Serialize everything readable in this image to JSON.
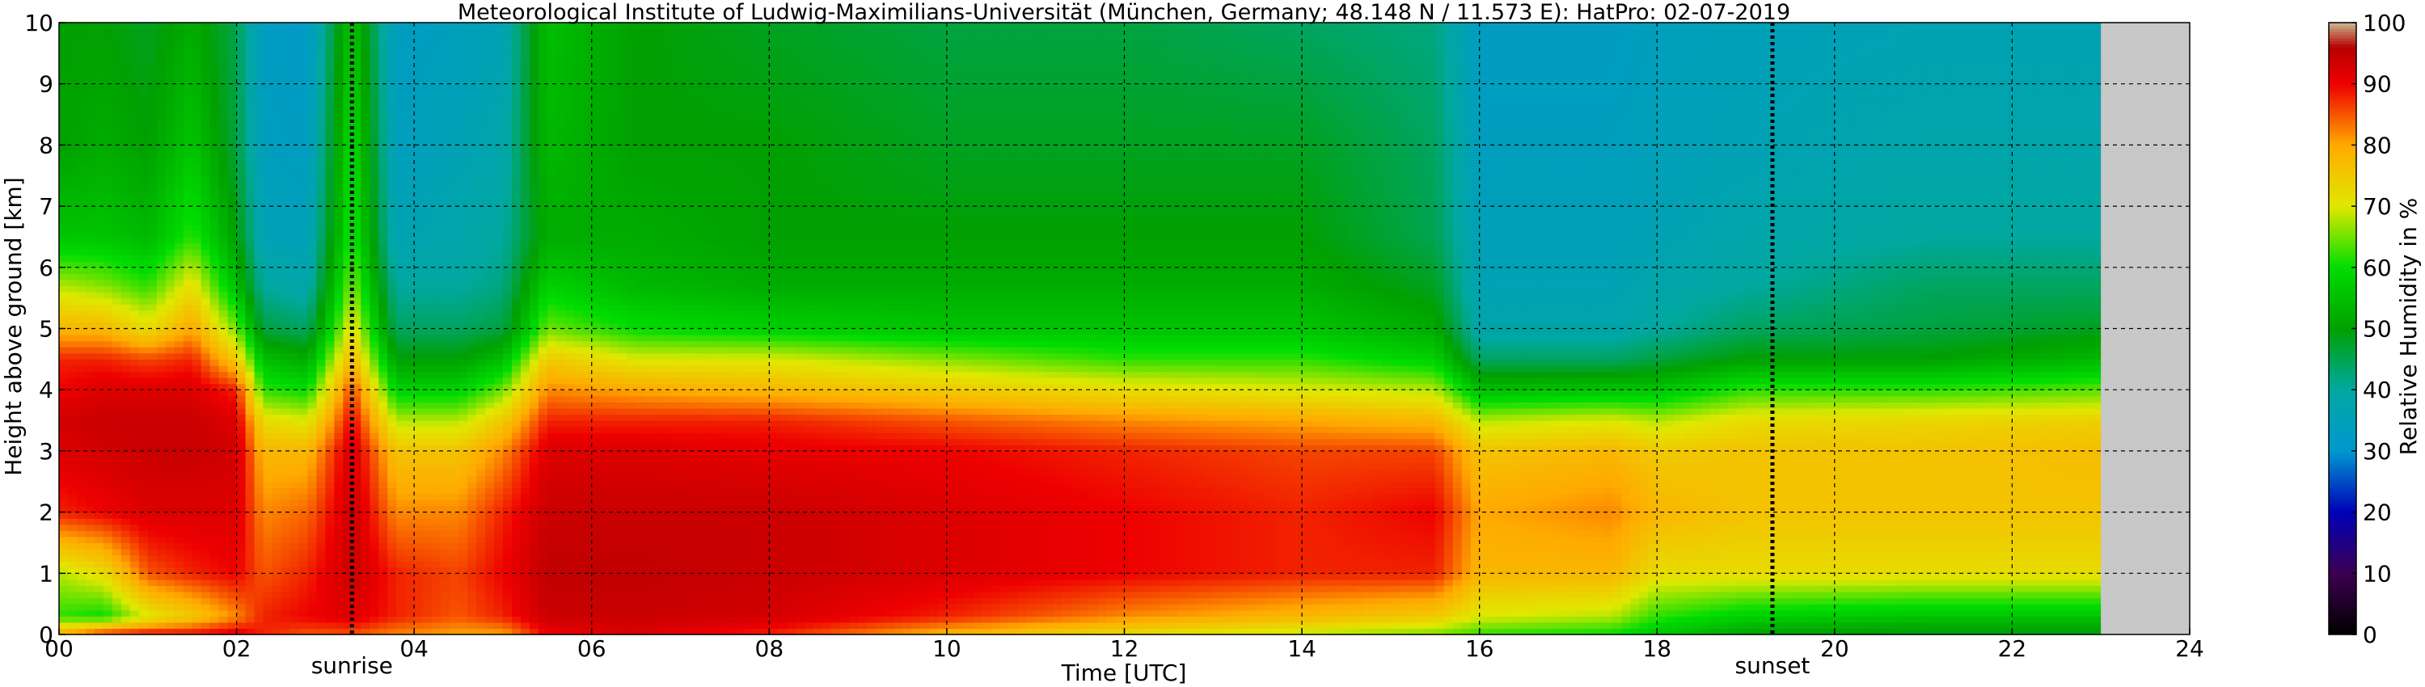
{
  "chart_data": {
    "type": "heatmap",
    "title": "Meteorological Institute of Ludwig-Maximilians-Universität (München, Germany; 48.148 N / 11.573 E):    HatPro: 02-07-2019",
    "xlabel": "Time [UTC]",
    "ylabel": "Height above ground [km]",
    "xlim": [
      0,
      24
    ],
    "ylim": [
      0,
      10
    ],
    "x_ticks": [
      "00",
      "02",
      "04",
      "06",
      "08",
      "10",
      "12",
      "14",
      "16",
      "18",
      "20",
      "22",
      "24"
    ],
    "y_ticks": [
      "0",
      "1",
      "2",
      "3",
      "4",
      "5",
      "6",
      "7",
      "8",
      "9",
      "10"
    ],
    "grid": true,
    "data_end_hour": 23.0,
    "missing_color": "#c8c8c8",
    "markers": [
      {
        "label": "sunrise",
        "hour": 3.3
      },
      {
        "label": "sunset",
        "hour": 19.3
      }
    ],
    "colorbar": {
      "label": "Relative Humidity in %",
      "ticks": [
        "0",
        "10",
        "20",
        "30",
        "40",
        "50",
        "60",
        "70",
        "80",
        "90",
        "100"
      ],
      "stops": [
        {
          "value": 0,
          "color": "#000000"
        },
        {
          "value": 10,
          "color": "#3d0050"
        },
        {
          "value": 20,
          "color": "#0000b8"
        },
        {
          "value": 30,
          "color": "#0098d0"
        },
        {
          "value": 40,
          "color": "#00a8a0"
        },
        {
          "value": 50,
          "color": "#00a000"
        },
        {
          "value": 60,
          "color": "#00dd00"
        },
        {
          "value": 70,
          "color": "#e0e800"
        },
        {
          "value": 80,
          "color": "#ffaa00"
        },
        {
          "value": 90,
          "color": "#ee0000"
        },
        {
          "value": 96,
          "color": "#b80000"
        },
        {
          "value": 100,
          "color": "#c8b890"
        }
      ]
    },
    "profiles": [
      {
        "hour": 0.0,
        "rh": [
          80,
          62,
          68,
          88,
          92,
          93,
          90,
          88,
          78,
          68,
          56,
          50,
          50
        ]
      },
      {
        "hour": 0.5,
        "rh": [
          88,
          60,
          72,
          90,
          93,
          94,
          92,
          88,
          78,
          66,
          56,
          52,
          50
        ]
      },
      {
        "hour": 1.0,
        "rh": [
          90,
          70,
          85,
          92,
          94,
          94,
          92,
          86,
          72,
          62,
          54,
          50,
          48
        ]
      },
      {
        "hour": 1.5,
        "rh": [
          90,
          75,
          88,
          92,
          94,
          94,
          92,
          88,
          80,
          72,
          62,
          56,
          52
        ]
      },
      {
        "hour": 2.0,
        "rh": [
          92,
          82,
          90,
          92,
          93,
          92,
          88,
          75,
          65,
          55,
          50,
          46,
          45
        ]
      },
      {
        "hour": 2.3,
        "rh": [
          88,
          88,
          85,
          82,
          78,
          72,
          62,
          55,
          46,
          40,
          36,
          34,
          33
        ]
      },
      {
        "hour": 2.8,
        "rh": [
          85,
          90,
          88,
          84,
          78,
          70,
          60,
          52,
          44,
          38,
          35,
          33,
          32
        ]
      },
      {
        "hour": 3.3,
        "rh": [
          85,
          92,
          94,
          94,
          93,
          90,
          86,
          78,
          72,
          66,
          62,
          60,
          56
        ]
      },
      {
        "hour": 3.8,
        "rh": [
          82,
          88,
          88,
          82,
          76,
          68,
          58,
          50,
          44,
          40,
          36,
          34,
          33
        ]
      },
      {
        "hour": 4.5,
        "rh": [
          80,
          85,
          86,
          82,
          76,
          68,
          58,
          50,
          44,
          40,
          38,
          36,
          34
        ]
      },
      {
        "hour": 5.0,
        "rh": [
          80,
          88,
          90,
          88,
          82,
          75,
          65,
          55,
          46,
          42,
          40,
          38,
          36
        ]
      },
      {
        "hour": 5.5,
        "rh": [
          90,
          94,
          95,
          94,
          92,
          88,
          82,
          75,
          65,
          58,
          52,
          54,
          55
        ]
      },
      {
        "hour": 6.5,
        "rh": [
          92,
          94,
          95,
          94,
          92,
          88,
          80,
          70,
          60,
          54,
          52,
          50,
          50
        ]
      },
      {
        "hour": 8.0,
        "rh": [
          88,
          93,
          94,
          94,
          91,
          88,
          78,
          70,
          58,
          52,
          50,
          50,
          48
        ]
      },
      {
        "hour": 10.0,
        "rh": [
          78,
          88,
          92,
          92,
          90,
          85,
          75,
          66,
          56,
          52,
          50,
          48,
          46
        ]
      },
      {
        "hour": 12.0,
        "rh": [
          72,
          82,
          90,
          90,
          88,
          82,
          72,
          62,
          56,
          52,
          50,
          48,
          46
        ]
      },
      {
        "hour": 14.0,
        "rh": [
          68,
          78,
          88,
          88,
          86,
          80,
          70,
          62,
          56,
          52,
          50,
          48,
          44
        ]
      },
      {
        "hour": 15.5,
        "rh": [
          65,
          75,
          88,
          90,
          86,
          78,
          68,
          58,
          52,
          48,
          45,
          44,
          42
        ]
      },
      {
        "hour": 16.0,
        "rh": [
          62,
          70,
          78,
          80,
          76,
          68,
          55,
          44,
          38,
          36,
          35,
          34,
          33
        ]
      },
      {
        "hour": 17.5,
        "rh": [
          60,
          68,
          78,
          82,
          78,
          70,
          56,
          44,
          38,
          36,
          35,
          34,
          33
        ]
      },
      {
        "hour": 18.0,
        "rh": [
          56,
          62,
          72,
          78,
          75,
          68,
          56,
          46,
          40,
          38,
          36,
          35,
          34
        ]
      },
      {
        "hour": 19.0,
        "rh": [
          50,
          58,
          72,
          76,
          76,
          72,
          62,
          50,
          44,
          40,
          38,
          36,
          35
        ]
      },
      {
        "hour": 21.0,
        "rh": [
          48,
          56,
          72,
          76,
          76,
          73,
          62,
          50,
          46,
          44,
          40,
          38,
          36
        ]
      },
      {
        "hour": 23.0,
        "rh": [
          48,
          56,
          72,
          76,
          77,
          74,
          64,
          54,
          48,
          44,
          40,
          38,
          36
        ]
      }
    ],
    "profile_heights_km": [
      0,
      0.3,
      1,
      2,
      3,
      3.5,
      4,
      4.5,
      5,
      5.7,
      6.5,
      8,
      10
    ]
  }
}
